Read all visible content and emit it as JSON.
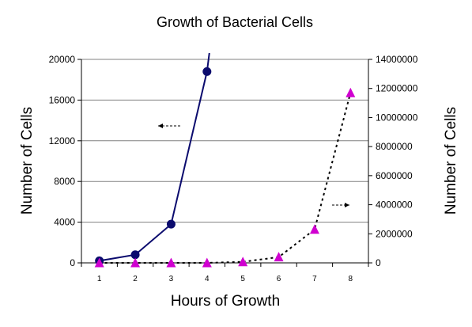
{
  "chart_data": {
    "type": "line",
    "title": "Growth of Bacterial Cells",
    "xlabel": "Hours of Growth",
    "ylabel_left": "Number of Cells",
    "ylabel_right": "Number of Cells",
    "categories": [
      "1",
      "2",
      "3",
      "4",
      "5",
      "6",
      "7",
      "8"
    ],
    "left_axis": {
      "ylim": [
        0,
        20000
      ],
      "ticks": [
        "0",
        "4000",
        "8000",
        "12000",
        "16000",
        "20000"
      ]
    },
    "right_axis": {
      "ylim": [
        0,
        14000000
      ],
      "ticks": [
        "0",
        "2000000",
        "4000000",
        "6000000",
        "8000000",
        "10000000",
        "12000000",
        "14000000"
      ]
    },
    "grid": true,
    "series": [
      {
        "axis": "left",
        "x": [
          1,
          2,
          3,
          4
        ],
        "values": [
          200,
          800,
          3800,
          18800
        ],
        "continues_above_axis": true,
        "line_style": "solid",
        "color": "#0b0b6e",
        "marker": "circle"
      },
      {
        "axis": "right",
        "x": [
          1,
          2,
          3,
          4,
          5,
          6,
          7,
          8
        ],
        "values": [
          0,
          0,
          0,
          0,
          70000,
          400000,
          2300000,
          11700000
        ],
        "line_style": "dotted",
        "color": "#000000",
        "marker_color": "#d000d0",
        "marker": "triangle"
      }
    ],
    "annotations": [
      {
        "type": "arrow",
        "direction": "left",
        "meaning": "left axis applies to circle series"
      },
      {
        "type": "arrow",
        "direction": "right",
        "meaning": "right axis applies to triangle series"
      }
    ]
  }
}
